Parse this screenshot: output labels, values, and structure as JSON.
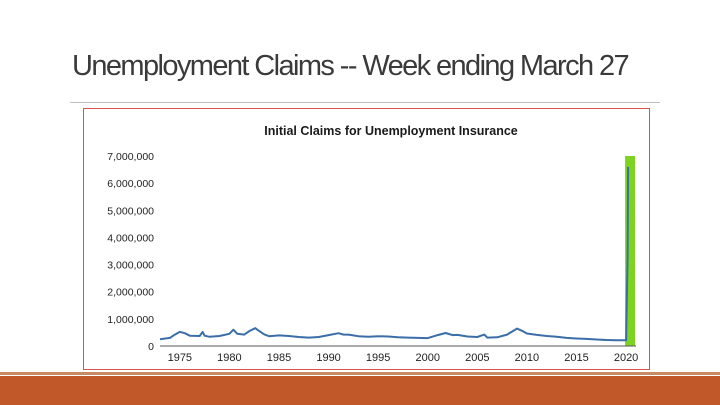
{
  "slide": {
    "title": "Unemployment Claims -- Week ending March 27"
  },
  "colors": {
    "line": "#3b6ea8",
    "highlight": "#7ed321",
    "frame": "#d9534f",
    "footer": "#c0582a"
  },
  "chart_data": {
    "type": "line",
    "title": "Initial Claims for Unemployment Insurance",
    "xlabel": "",
    "ylabel": "",
    "xlim": [
      1973,
      2021
    ],
    "ylim": [
      0,
      7000000
    ],
    "x_ticks": [
      1975,
      1980,
      1985,
      1990,
      1995,
      2000,
      2005,
      2010,
      2015,
      2020
    ],
    "y_ticks": [
      0,
      1000000,
      2000000,
      3000000,
      4000000,
      5000000,
      6000000,
      7000000
    ],
    "y_tick_labels": [
      "0",
      "1,000,000",
      "2,000,000",
      "3,000,000",
      "4,000,000",
      "5,000,000",
      "6,000,000",
      "7,000,000"
    ],
    "grid": false,
    "highlight_range": [
      2019.9,
      2020.9
    ],
    "series": [
      {
        "values": [
          [
            1973.0,
            250000
          ],
          [
            1974.0,
            300000
          ],
          [
            1974.5,
            420000
          ],
          [
            1975.0,
            520000
          ],
          [
            1975.5,
            470000
          ],
          [
            1976.0,
            380000
          ],
          [
            1977.0,
            370000
          ],
          [
            1977.3,
            520000
          ],
          [
            1977.5,
            380000
          ],
          [
            1978.0,
            340000
          ],
          [
            1979.0,
            370000
          ],
          [
            1980.0,
            450000
          ],
          [
            1980.4,
            600000
          ],
          [
            1980.8,
            450000
          ],
          [
            1981.5,
            420000
          ],
          [
            1982.0,
            550000
          ],
          [
            1982.6,
            660000
          ],
          [
            1982.9,
            580000
          ],
          [
            1983.5,
            430000
          ],
          [
            1984.0,
            360000
          ],
          [
            1985.0,
            390000
          ],
          [
            1986.0,
            370000
          ],
          [
            1987.0,
            330000
          ],
          [
            1988.0,
            310000
          ],
          [
            1989.0,
            330000
          ],
          [
            1990.0,
            400000
          ],
          [
            1991.0,
            470000
          ],
          [
            1991.5,
            420000
          ],
          [
            1992.0,
            420000
          ],
          [
            1993.0,
            360000
          ],
          [
            1994.0,
            340000
          ],
          [
            1995.0,
            360000
          ],
          [
            1996.0,
            350000
          ],
          [
            1997.0,
            320000
          ],
          [
            1998.0,
            310000
          ],
          [
            1999.0,
            300000
          ],
          [
            2000.0,
            290000
          ],
          [
            2001.0,
            400000
          ],
          [
            2001.8,
            480000
          ],
          [
            2002.5,
            400000
          ],
          [
            2003.0,
            410000
          ],
          [
            2004.0,
            350000
          ],
          [
            2005.0,
            330000
          ],
          [
            2005.7,
            420000
          ],
          [
            2006.0,
            310000
          ],
          [
            2007.0,
            320000
          ],
          [
            2008.0,
            420000
          ],
          [
            2009.0,
            640000
          ],
          [
            2009.5,
            560000
          ],
          [
            2010.0,
            460000
          ],
          [
            2011.0,
            410000
          ],
          [
            2012.0,
            370000
          ],
          [
            2013.0,
            340000
          ],
          [
            2014.0,
            300000
          ],
          [
            2015.0,
            275000
          ],
          [
            2016.0,
            260000
          ],
          [
            2017.0,
            240000
          ],
          [
            2018.0,
            220000
          ],
          [
            2019.0,
            215000
          ],
          [
            2020.0,
            210000
          ],
          [
            2020.15,
            3300000
          ],
          [
            2020.2,
            6600000
          ]
        ]
      }
    ]
  }
}
